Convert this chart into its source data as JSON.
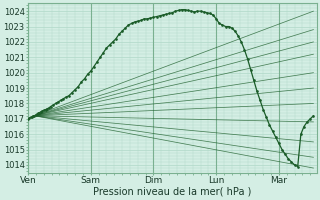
{
  "xlabel": "Pression niveau de la mer( hPa )",
  "ylim": [
    1013.5,
    1024.5
  ],
  "yticks": [
    1014,
    1015,
    1016,
    1017,
    1018,
    1019,
    1020,
    1021,
    1022,
    1023,
    1024
  ],
  "xtick_labels": [
    "Ven",
    "Sam",
    "Dim",
    "Lun",
    "Mar"
  ],
  "xtick_positions": [
    0,
    1,
    2,
    3,
    4
  ],
  "bg_color": "#d4eee4",
  "grid_color": "#b0d8c8",
  "line_color": "#1a5c28",
  "xlim": [
    0.0,
    4.6
  ],
  "fan_origin_x": 0.1,
  "fan_origin_y": 1017.2,
  "fan_lines": [
    {
      "x2": 4.55,
      "y2": 1024.0
    },
    {
      "x2": 4.55,
      "y2": 1022.8
    },
    {
      "x2": 4.55,
      "y2": 1022.0
    },
    {
      "x2": 4.55,
      "y2": 1021.2
    },
    {
      "x2": 4.55,
      "y2": 1020.0
    },
    {
      "x2": 4.55,
      "y2": 1019.0
    },
    {
      "x2": 4.55,
      "y2": 1018.0
    },
    {
      "x2": 4.55,
      "y2": 1016.8
    },
    {
      "x2": 4.55,
      "y2": 1015.5
    },
    {
      "x2": 4.55,
      "y2": 1014.5
    },
    {
      "x2": 4.55,
      "y2": 1013.8
    }
  ],
  "main_x": [
    0.0,
    0.02,
    0.04,
    0.06,
    0.08,
    0.1,
    0.12,
    0.14,
    0.16,
    0.18,
    0.2,
    0.22,
    0.25,
    0.28,
    0.3,
    0.33,
    0.36,
    0.4,
    0.44,
    0.48,
    0.52,
    0.56,
    0.6,
    0.65,
    0.7,
    0.75,
    0.8,
    0.85,
    0.9,
    0.95,
    1.0,
    1.05,
    1.1,
    1.15,
    1.2,
    1.25,
    1.3,
    1.35,
    1.4,
    1.45,
    1.5,
    1.55,
    1.6,
    1.65,
    1.7,
    1.75,
    1.8,
    1.85,
    1.9,
    1.95,
    2.0,
    2.05,
    2.1,
    2.15,
    2.2,
    2.25,
    2.3,
    2.35,
    2.4,
    2.45,
    2.5,
    2.55,
    2.6,
    2.65,
    2.7,
    2.75,
    2.8,
    2.85,
    2.9,
    2.95,
    3.0,
    3.05,
    3.1,
    3.15,
    3.2,
    3.25,
    3.3,
    3.35,
    3.4,
    3.45,
    3.5,
    3.55,
    3.6,
    3.65,
    3.7,
    3.75,
    3.8,
    3.85,
    3.9,
    3.95,
    4.0,
    4.05,
    4.1,
    4.15,
    4.2,
    4.25,
    4.3,
    4.35,
    4.4,
    4.45,
    4.5,
    4.55
  ],
  "main_y": [
    1017.0,
    1017.05,
    1017.1,
    1017.1,
    1017.2,
    1017.2,
    1017.25,
    1017.3,
    1017.35,
    1017.4,
    1017.45,
    1017.5,
    1017.55,
    1017.6,
    1017.65,
    1017.7,
    1017.8,
    1017.9,
    1018.0,
    1018.1,
    1018.2,
    1018.3,
    1018.4,
    1018.5,
    1018.7,
    1018.9,
    1019.1,
    1019.4,
    1019.6,
    1019.9,
    1020.1,
    1020.4,
    1020.7,
    1021.0,
    1021.3,
    1021.6,
    1021.8,
    1022.0,
    1022.2,
    1022.5,
    1022.7,
    1022.9,
    1023.1,
    1023.2,
    1023.3,
    1023.35,
    1023.4,
    1023.5,
    1023.5,
    1023.55,
    1023.6,
    1023.65,
    1023.7,
    1023.75,
    1023.8,
    1023.85,
    1023.9,
    1024.0,
    1024.05,
    1024.1,
    1024.1,
    1024.05,
    1024.0,
    1023.95,
    1024.0,
    1024.0,
    1023.95,
    1023.9,
    1023.85,
    1023.75,
    1023.5,
    1023.2,
    1023.1,
    1023.0,
    1023.0,
    1022.9,
    1022.7,
    1022.4,
    1022.0,
    1021.5,
    1020.9,
    1020.2,
    1019.5,
    1018.8,
    1018.2,
    1017.6,
    1017.1,
    1016.6,
    1016.2,
    1015.8,
    1015.4,
    1015.0,
    1014.7,
    1014.4,
    1014.2,
    1014.0,
    1013.9,
    1016.0,
    1016.5,
    1016.8,
    1017.0,
    1017.2
  ]
}
